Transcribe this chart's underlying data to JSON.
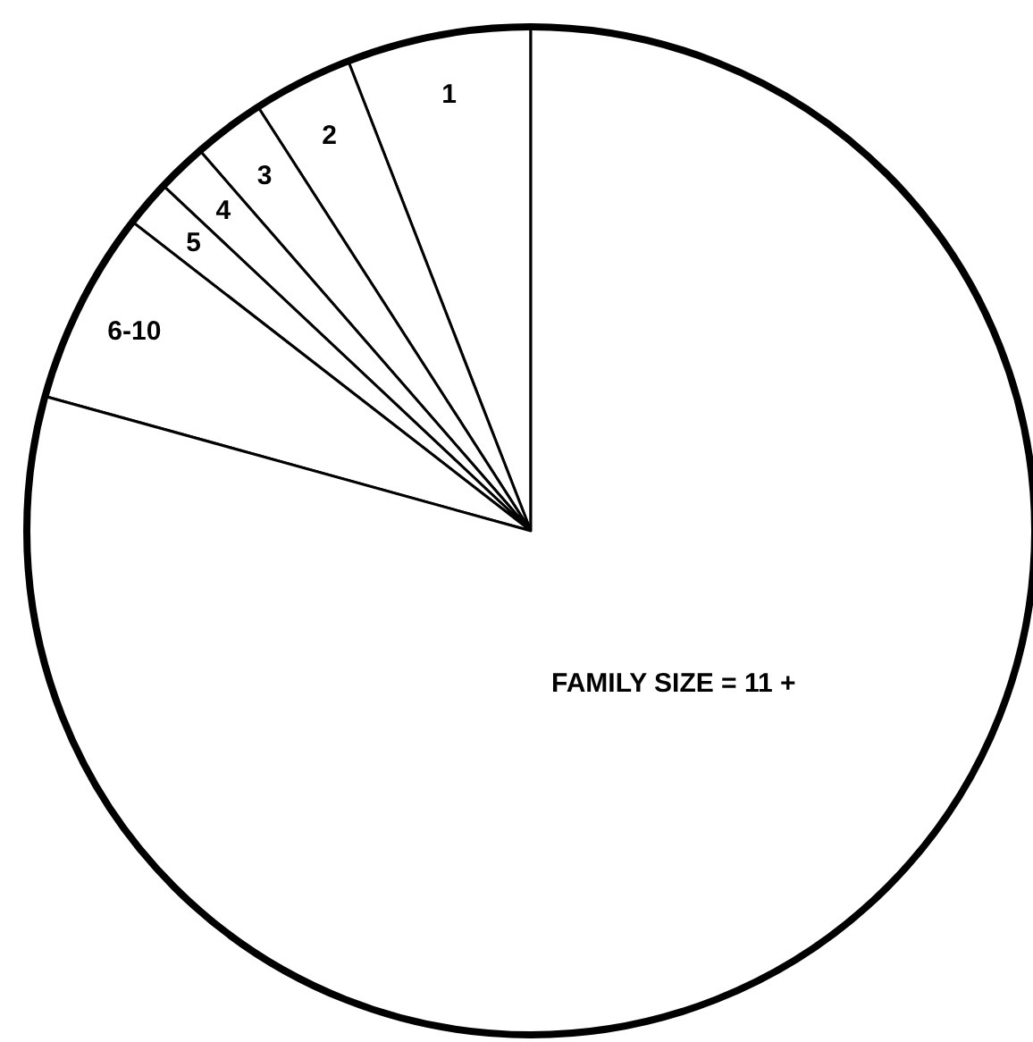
{
  "chart_data": {
    "type": "pie",
    "categories": [
      "1",
      "2",
      "3",
      "4",
      "5",
      "6-10",
      "FAMILY SIZE = 11 +"
    ],
    "values": [
      5.9,
      3.2,
      2.3,
      1.6,
      1.5,
      6.2,
      79.3
    ],
    "colors": [
      "#ffffff",
      "#ffffff",
      "#ffffff",
      "#ffffff",
      "#ffffff",
      "#ffffff",
      "#ffffff"
    ]
  }
}
